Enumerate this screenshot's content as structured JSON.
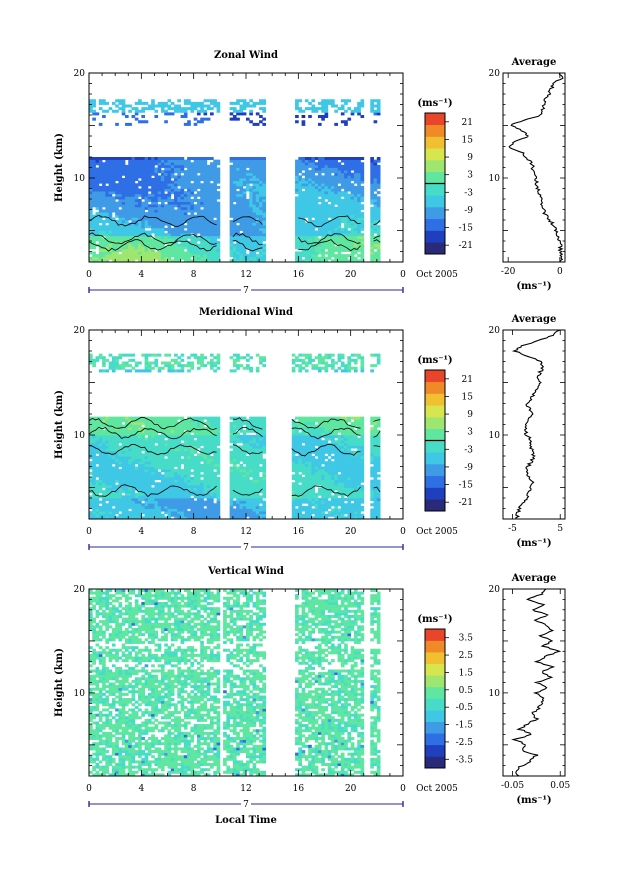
{
  "colors": {
    "scale": [
      "#2a2a7a",
      "#1f3fbf",
      "#2f6fe6",
      "#3f9be6",
      "#3fc7e6",
      "#47dcc8",
      "#5fe6a0",
      "#9fe670",
      "#d7e64f",
      "#f0c030",
      "#f08a28",
      "#e8452a"
    ],
    "white": "#ffffff",
    "frame": "#000000",
    "contour": "#000000",
    "axis_accent": "#2a2a9a"
  },
  "x_axis": {
    "ticks": [
      "0",
      "4",
      "8",
      "12",
      "16",
      "20",
      "0"
    ],
    "day_label": "7",
    "date_label": "Oct 2005",
    "xlabel": "Local Time"
  },
  "chart_data": [
    {
      "type": "heatmap",
      "name": "zonal",
      "title": "Zonal Wind",
      "xlabel": "",
      "ylabel": "Height (km)",
      "xlim": [
        0,
        24
      ],
      "ylim": [
        2,
        20
      ],
      "yticks": [
        "20",
        "10"
      ],
      "colorbar": {
        "unit": "(ms⁻¹)",
        "ticks": [
          "21",
          "15",
          "9",
          "3",
          "-3",
          "-9",
          "-15",
          "-21"
        ],
        "range": [
          -24,
          24
        ],
        "contour_level": 0
      },
      "gaps": [
        [
          9.9,
          10.8
        ],
        [
          13.5,
          15.8
        ],
        [
          21.0,
          21.6
        ],
        [
          22.3,
          24
        ]
      ],
      "profile": {
        "title": "Average",
        "xticks": [
          "-20",
          "0"
        ],
        "xlim": [
          -22,
          2
        ],
        "unit": "(ms⁻¹)",
        "height": [
          2,
          2.5,
          3,
          3.5,
          4,
          4.5,
          5,
          5.5,
          6,
          6.5,
          7,
          7.5,
          8,
          8.5,
          9,
          9.5,
          10,
          10.5,
          11,
          11.5,
          12,
          12.5,
          13,
          13.5,
          14,
          14.5,
          15,
          15.5,
          16,
          16.5,
          17,
          17.5,
          18,
          18.5,
          19,
          19.5,
          20
        ],
        "value": [
          0.5,
          0.4,
          0.3,
          0.2,
          0.0,
          -0.5,
          -1.5,
          -2.5,
          -4.0,
          -5.5,
          -6.5,
          -7.0,
          -7.5,
          -8.0,
          -8.5,
          -9.0,
          -9.5,
          -10.0,
          -10.5,
          -11.0,
          -13.0,
          -15.0,
          -20.0,
          -17.0,
          -12.0,
          -15.0,
          -19.0,
          -14.0,
          -7.0,
          -6.5,
          -6.0,
          -6.0,
          -4.0,
          -3.5,
          -2.0,
          0.5,
          0.0
        ]
      }
    },
    {
      "type": "heatmap",
      "name": "meridional",
      "title": "Meridional Wind",
      "xlabel": "",
      "ylabel": "Height (km)",
      "xlim": [
        0,
        24
      ],
      "ylim": [
        2,
        20
      ],
      "yticks": [
        "20",
        "10"
      ],
      "colorbar": {
        "unit": "(ms⁻¹)",
        "ticks": [
          "21",
          "15",
          "9",
          "3",
          "-3",
          "-9",
          "-15",
          "-21"
        ],
        "range": [
          -24,
          24
        ],
        "contour_level": 0
      },
      "gaps": [
        [
          9.9,
          10.8
        ],
        [
          13.5,
          15.5
        ],
        [
          21.0,
          21.6
        ],
        [
          22.3,
          24
        ]
      ],
      "profile": {
        "title": "Average",
        "xticks": [
          "-5",
          "5"
        ],
        "xlim": [
          -7,
          6
        ],
        "unit": "(ms⁻¹)",
        "height": [
          2,
          2.5,
          3,
          3.5,
          4,
          4.5,
          5,
          5.5,
          6,
          6.5,
          7,
          7.5,
          8,
          8.5,
          9,
          9.5,
          10,
          10.5,
          11,
          11.5,
          12,
          12.5,
          13,
          13.5,
          14,
          14.5,
          15,
          15.5,
          16,
          16.5,
          17,
          17.5,
          18,
          18.5,
          19,
          19.5,
          20
        ],
        "value": [
          -4.0,
          -4.0,
          -3.5,
          -3.0,
          -2.0,
          -1.5,
          -1.0,
          -0.8,
          -1.5,
          -2.0,
          -1.8,
          -1.0,
          -0.5,
          -0.8,
          -1.5,
          -1.2,
          -2.0,
          -2.5,
          -2.0,
          -1.5,
          -0.8,
          -1.5,
          -2.0,
          -1.0,
          -0.5,
          0.5,
          1.0,
          0.5,
          0.8,
          1.5,
          1.0,
          -2.0,
          -4.5,
          -3.0,
          0.5,
          3.5,
          5.0
        ]
      }
    },
    {
      "type": "heatmap",
      "name": "vertical",
      "title": "Vertical Wind",
      "xlabel": "Local Time",
      "ylabel": "Height (km)",
      "xlim": [
        0,
        24
      ],
      "ylim": [
        2,
        20
      ],
      "yticks": [
        "20",
        "10"
      ],
      "colorbar": {
        "unit": "(ms⁻¹)",
        "ticks": [
          "3.5",
          "2.5",
          "1.5",
          "0.5",
          "-0.5",
          "-1.5",
          "-2.5",
          "-3.5"
        ],
        "range": [
          -4,
          4
        ]
      },
      "gaps": [
        [
          9.9,
          10.3
        ],
        [
          13.5,
          15.8
        ],
        [
          21.0,
          21.6
        ],
        [
          22.3,
          24
        ]
      ],
      "profile": {
        "title": "Average",
        "xticks": [
          "-0.05",
          "0.05"
        ],
        "xlim": [
          -0.07,
          0.06
        ],
        "unit": "(ms⁻¹)",
        "height": [
          2,
          2.5,
          3,
          3.5,
          4,
          4.5,
          5,
          5.5,
          6,
          6.5,
          7,
          7.5,
          8,
          8.5,
          9,
          9.5,
          10,
          10.5,
          11,
          11.5,
          12,
          12.5,
          13,
          13.5,
          14,
          14.5,
          15,
          15.5,
          16,
          16.5,
          17,
          17.5,
          18,
          18.5,
          19,
          19.5,
          20
        ],
        "value": [
          -0.04,
          -0.045,
          -0.03,
          -0.01,
          0.0,
          -0.03,
          -0.02,
          -0.045,
          -0.01,
          -0.035,
          -0.02,
          0.0,
          -0.01,
          0.005,
          0.01,
          0.015,
          0.0,
          0.02,
          0.0,
          0.03,
          0.01,
          0.035,
          0.0,
          0.02,
          0.045,
          0.015,
          0.03,
          0.01,
          0.035,
          0.02,
          0.0,
          0.025,
          -0.01,
          0.015,
          -0.02,
          0.01,
          0.02
        ]
      }
    }
  ]
}
